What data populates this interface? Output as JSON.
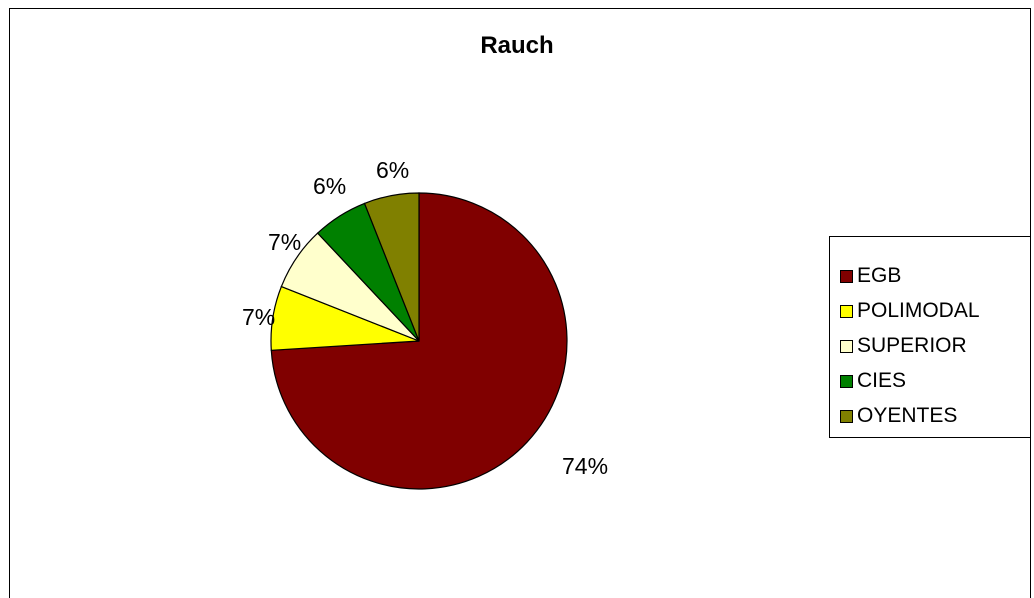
{
  "chart_data": {
    "type": "pie",
    "title": "Rauch",
    "categories": [
      "EGB",
      "POLIMODAL",
      "SUPERIOR",
      "CIES",
      "OYENTES"
    ],
    "values": [
      74,
      7,
      7,
      6,
      6
    ],
    "labels": [
      "74%",
      "7%",
      "7%",
      "6%",
      "6%"
    ],
    "colors": [
      "#800000",
      "#ffff00",
      "#ffffcc",
      "#008000",
      "#808000"
    ],
    "legend_position": "right"
  }
}
